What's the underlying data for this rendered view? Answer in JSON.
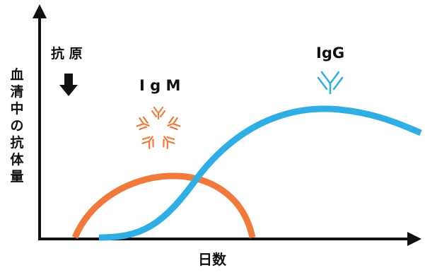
{
  "labels": {
    "antigen": "抗 原",
    "igm": "I g M",
    "igg": "IgG",
    "y_axis": "血清中の抗体量",
    "x_axis": "日数"
  },
  "colors": {
    "igm": "#f07a3c",
    "igg": "#2eaee3",
    "axis": "#111111"
  },
  "icons": {
    "antigen_marker": "down-arrow-icon",
    "igm_structure": "igm-pentamer-icon",
    "igg_structure": "igg-antibody-icon"
  }
}
